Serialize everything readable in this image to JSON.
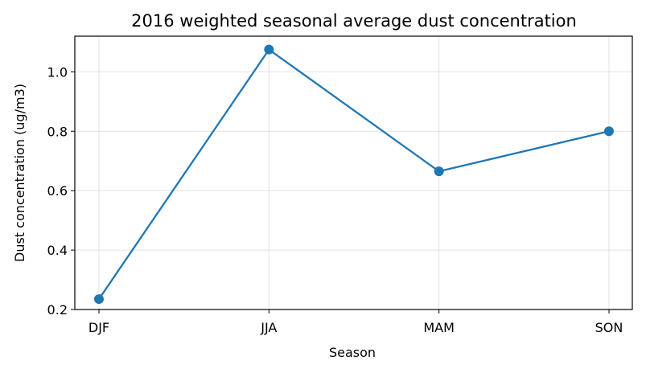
{
  "chart_data": {
    "type": "line",
    "title": "2016 weighted seasonal average dust concentration",
    "xlabel": "Season",
    "ylabel": "Dust concentration (ug/m3)",
    "categories": [
      "DJF",
      "JJA",
      "MAM",
      "SON"
    ],
    "series": [
      {
        "values": [
          0.235,
          1.075,
          0.665,
          0.8
        ],
        "color": "#1f77b4"
      }
    ],
    "ylim": [
      0.2,
      1.12
    ],
    "yticks": [
      0.2,
      0.4,
      0.6,
      0.8,
      1.0
    ],
    "ytick_labels": [
      "0.2",
      "0.4",
      "0.6",
      "0.8",
      "1.0"
    ],
    "grid": true,
    "marker": "circle"
  }
}
